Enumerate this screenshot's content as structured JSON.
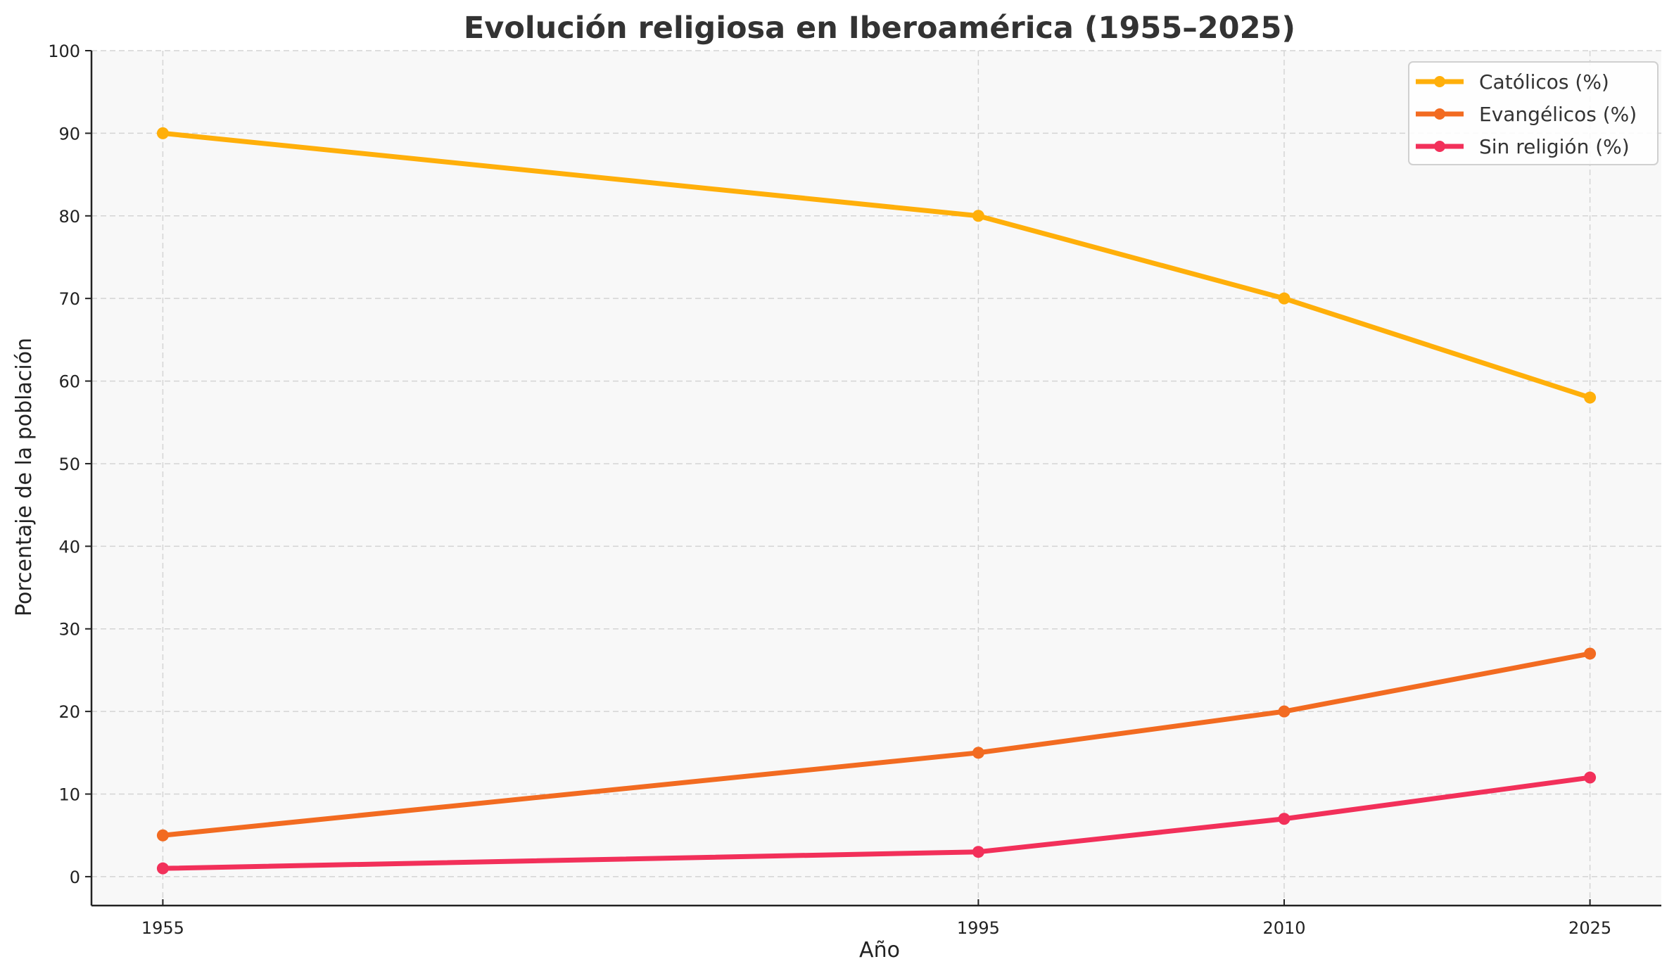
{
  "chart_data": {
    "type": "line",
    "title": "Evolución religiosa en Iberoamérica (1955–2025)",
    "xlabel": "Año",
    "ylabel": "Porcentaje de la población",
    "x": [
      1955,
      1995,
      2010,
      2025
    ],
    "x_ticks": [
      "1955",
      "1995",
      "2010",
      "2025"
    ],
    "y_ticks": [
      "0",
      "10",
      "20",
      "30",
      "40",
      "50",
      "60",
      "70",
      "80",
      "90",
      "100"
    ],
    "xlim": [
      1951.5,
      2028.5
    ],
    "ylim": [
      -3.5,
      100
    ],
    "grid": true,
    "legend_position": "top-right",
    "series": [
      {
        "name": "Católicos (%)",
        "color": "#FFAF0A",
        "values": [
          90,
          80,
          70,
          58
        ]
      },
      {
        "name": "Evangélicos (%)",
        "color": "#F26B21",
        "values": [
          5,
          15,
          20,
          27
        ]
      },
      {
        "name": "Sin religión (%)",
        "color": "#F2305A",
        "values": [
          1,
          3,
          7,
          12
        ]
      }
    ],
    "plot_background": "#F8F8F8"
  }
}
